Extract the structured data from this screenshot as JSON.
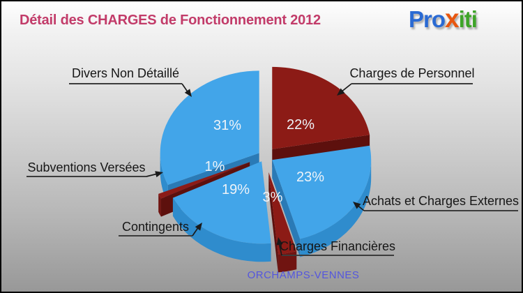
{
  "header": {
    "title": "Détail des CHARGES de Fonctionnement 2012",
    "title_color": "#c23b69"
  },
  "logo": {
    "text": "Proxiti",
    "part_pro": "Pro",
    "part_x": "x",
    "part_iti": "iti",
    "color_pro": "#2a6ad3",
    "color_x": "#e8560f",
    "color_iti": "#3ea428"
  },
  "footer": {
    "municipality": "ORCHAMPS-VENNES",
    "color": "#5456de"
  },
  "chart_data": {
    "type": "pie",
    "style": "3d-exploded",
    "title": "Détail des CHARGES de Fonctionnement 2012",
    "unit": "%",
    "start_angle_deg": -90,
    "direction": "clockwise",
    "legend": "none",
    "labels_shown_as": "callouts-with-percent-inside",
    "palette": {
      "blue": "#42a5e9",
      "dark_red": "#8c1b16"
    },
    "slices": [
      {
        "label": "Charges de Personnel",
        "value": 22,
        "color": "#8c1b16"
      },
      {
        "label": "Achats et Charges Externes",
        "value": 23,
        "color": "#42a5e9"
      },
      {
        "label": "Charges Financières",
        "value": 3,
        "color": "#8c1b16"
      },
      {
        "label": "Contingents",
        "value": 19,
        "color": "#42a5e9"
      },
      {
        "label": "Subventions Versées",
        "value": 1,
        "color": "#8c1b16"
      },
      {
        "label": "Divers Non Détaillé",
        "value": 31,
        "color": "#42a5e9"
      }
    ]
  }
}
